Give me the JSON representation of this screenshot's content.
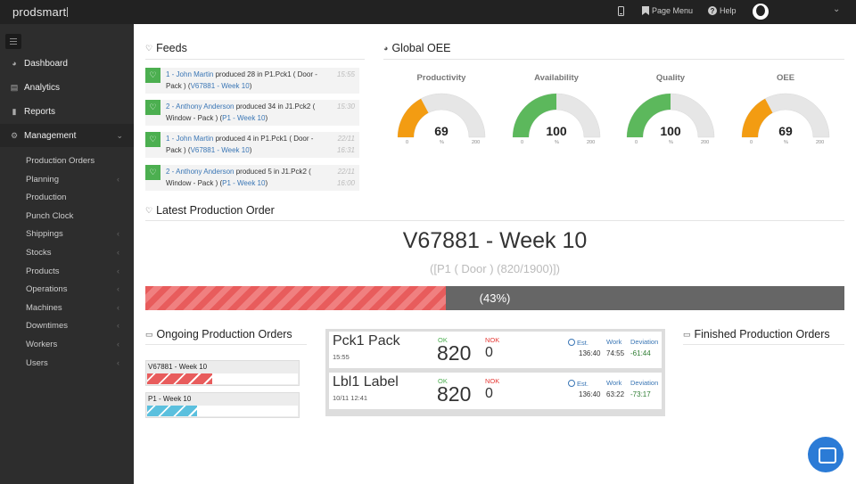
{
  "topbar": {
    "logo": "prodsmart",
    "page_menu": "Page Menu",
    "help": "Help",
    "icons": [
      "mobile-icon",
      "bookmark-icon",
      "help-icon",
      "user-avatar",
      "chevron-down-icon"
    ]
  },
  "sidebar": {
    "main_items": [
      {
        "label": "Dashboard",
        "icon": "dashboard-icon"
      },
      {
        "label": "Analytics",
        "icon": "chart-icon"
      },
      {
        "label": "Reports",
        "icon": "file-icon"
      },
      {
        "label": "Management",
        "icon": "cogs-icon"
      }
    ],
    "sub_items": [
      {
        "label": "Production Orders",
        "has_chevron": false
      },
      {
        "label": "Planning",
        "has_chevron": true
      },
      {
        "label": "Production",
        "has_chevron": false
      },
      {
        "label": "Punch Clock",
        "has_chevron": false
      },
      {
        "label": "Shippings",
        "has_chevron": true
      },
      {
        "label": "Stocks",
        "has_chevron": true
      },
      {
        "label": "Products",
        "has_chevron": true
      },
      {
        "label": "Operations",
        "has_chevron": true
      },
      {
        "label": "Machines",
        "has_chevron": true
      },
      {
        "label": "Downtimes",
        "has_chevron": true
      },
      {
        "label": "Workers",
        "has_chevron": true
      },
      {
        "label": "Users",
        "has_chevron": true
      }
    ]
  },
  "feeds": {
    "title": "Feeds",
    "items": [
      {
        "worker": "1 - John Martin",
        "pre": "produced 28 in P1.Pck1 ( Door - Pack ) (",
        "order": "V67881 - Week 10",
        "post": ")",
        "time": "15:55",
        "time2": ""
      },
      {
        "worker": "2 - Anthony Anderson",
        "pre": "produced 34 in J1.Pck2 ( Window - Pack ) (",
        "order": "P1 - Week 10",
        "post": ")",
        "time": "15:30",
        "time2": ""
      },
      {
        "worker": "1 - John Martin",
        "pre": "produced 4 in P1.Pck1 ( Door - Pack ) (",
        "order": "V67881 - Week 10",
        "post": ")",
        "time": "22/11",
        "time2": "16:31"
      },
      {
        "worker": "2 - Anthony Anderson",
        "pre": "produced 5 in J1.Pck2 ( Window - Pack ) (",
        "order": "P1 - Week 10",
        "post": ")",
        "time": "22/11",
        "time2": "16:00"
      }
    ]
  },
  "oee": {
    "title": "Global OEE",
    "gauges": [
      {
        "label": "Productivity",
        "value": 69,
        "display": "69",
        "color": "#f39c12"
      },
      {
        "label": "Availability",
        "value": 100,
        "display": "100",
        "color": "#5cb85c"
      },
      {
        "label": "Quality",
        "value": 100,
        "display": "100",
        "color": "#5cb85c"
      },
      {
        "label": "OEE",
        "value": 69,
        "display": "69",
        "color": "#f39c12"
      }
    ],
    "min": "0",
    "max": "200",
    "unit": "%"
  },
  "latest": {
    "title": "Latest Production Order",
    "order_name": "V67881 - Week 10",
    "order_detail": "([P1 ( Door ) (820/1900)])",
    "progress": 0.43,
    "progress_label": "(43%)"
  },
  "ongoing": {
    "title": "Ongoing Production Orders",
    "orders": [
      {
        "name": "V67881 - Week 10",
        "progress": 0.43,
        "color": "#e85c5c"
      },
      {
        "name": "P1 - Week 10",
        "progress": 0.33,
        "color": "#5bc0de"
      }
    ]
  },
  "operations": [
    {
      "name": "Pck1 Pack",
      "time": "15:55",
      "ok_label": "OK",
      "ok": "820",
      "nok_label": "NOK",
      "nok": "0",
      "est_label": "Est.",
      "work_label": "Work",
      "dev_label": "Deviation",
      "est": "136:40",
      "work": "74:55",
      "dev": "-61:44"
    },
    {
      "name": "Lbl1 Label",
      "time": "10/11 12:41",
      "ok_label": "OK",
      "ok": "820",
      "nok_label": "NOK",
      "nok": "0",
      "est_label": "Est.",
      "work_label": "Work",
      "dev_label": "Deviation",
      "est": "136:40",
      "work": "63:22",
      "dev": "-73:17"
    }
  ],
  "finished": {
    "title": "Finished Production Orders"
  }
}
